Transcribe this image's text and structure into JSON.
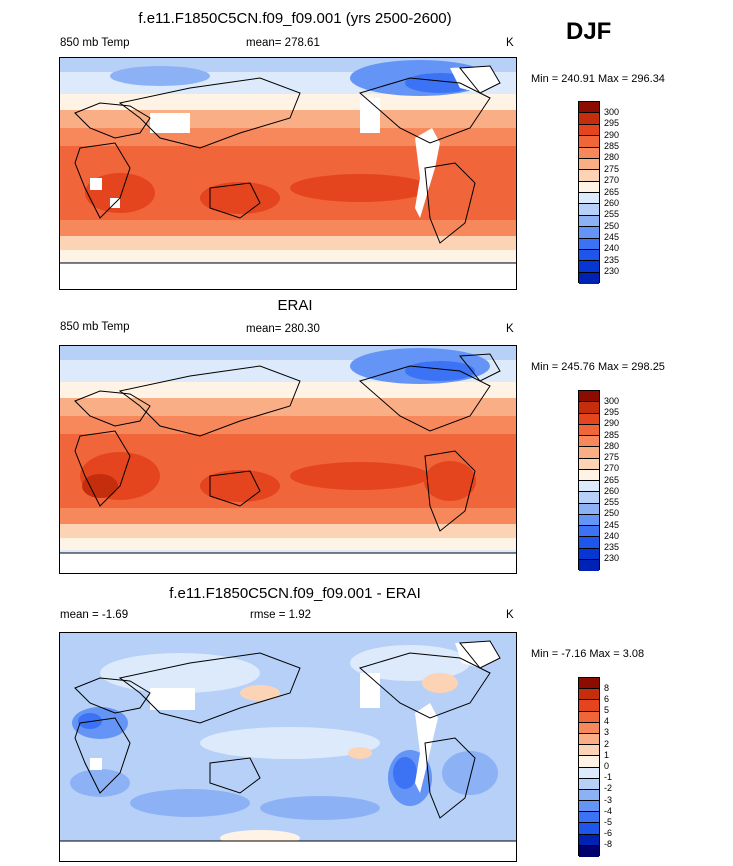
{
  "season": "DJF",
  "colors": {
    "temp": [
      "#00006e",
      "#0022b4",
      "#0637d2",
      "#1e55eb",
      "#3c73f5",
      "#6494f5",
      "#8cb2f5",
      "#b6d0f8",
      "#dceafb",
      "#fff3e6",
      "#fcd3b4",
      "#f9ae85",
      "#f6885c",
      "#f1653a",
      "#e4451e",
      "#c52e0d",
      "#8c0d00"
    ],
    "diff": [
      "#00006e",
      "#0022b4",
      "#1e55eb",
      "#3c73f5",
      "#6494f5",
      "#8cb2f5",
      "#b6d0f8",
      "#dceafb",
      "#fff3e6",
      "#fcd3b4",
      "#f9ae85",
      "#f6885c",
      "#f1653a",
      "#e4451e",
      "#c52e0d",
      "#8c0d00"
    ]
  },
  "panels": [
    {
      "title": "f.e11.F1850C5CN.f09_f09.001 (yrs 2500-2600)",
      "left_label": "850 mb Temp",
      "center_label": "mean= 278.61",
      "right_label": "K",
      "minmax": "Min = 240.91 Max = 296.34",
      "colorbar_levels": [
        "300",
        "295",
        "290",
        "285",
        "280",
        "275",
        "270",
        "265",
        "260",
        "255",
        "250",
        "245",
        "240",
        "235",
        "230"
      ]
    },
    {
      "title": "ERAI",
      "left_label": "850 mb Temp",
      "center_label": "mean= 280.30",
      "right_label": "K",
      "minmax": "Min = 245.76 Max = 298.25",
      "colorbar_levels": [
        "300",
        "295",
        "290",
        "285",
        "280",
        "275",
        "270",
        "265",
        "260",
        "255",
        "250",
        "245",
        "240",
        "235",
        "230"
      ]
    },
    {
      "title": "f.e11.F1850C5CN.f09_f09.001 - ERAI",
      "left_label": "mean =  -1.69",
      "center_label": "rmse =   1.92",
      "right_label": "K",
      "minmax": "Min =  -7.16 Max =   3.08",
      "colorbar_levels": [
        "8",
        "6",
        "5",
        "4",
        "3",
        "2",
        "1",
        "0",
        "-1",
        "-2",
        "-3",
        "-4",
        "-5",
        "-6",
        "-8"
      ]
    }
  ]
}
